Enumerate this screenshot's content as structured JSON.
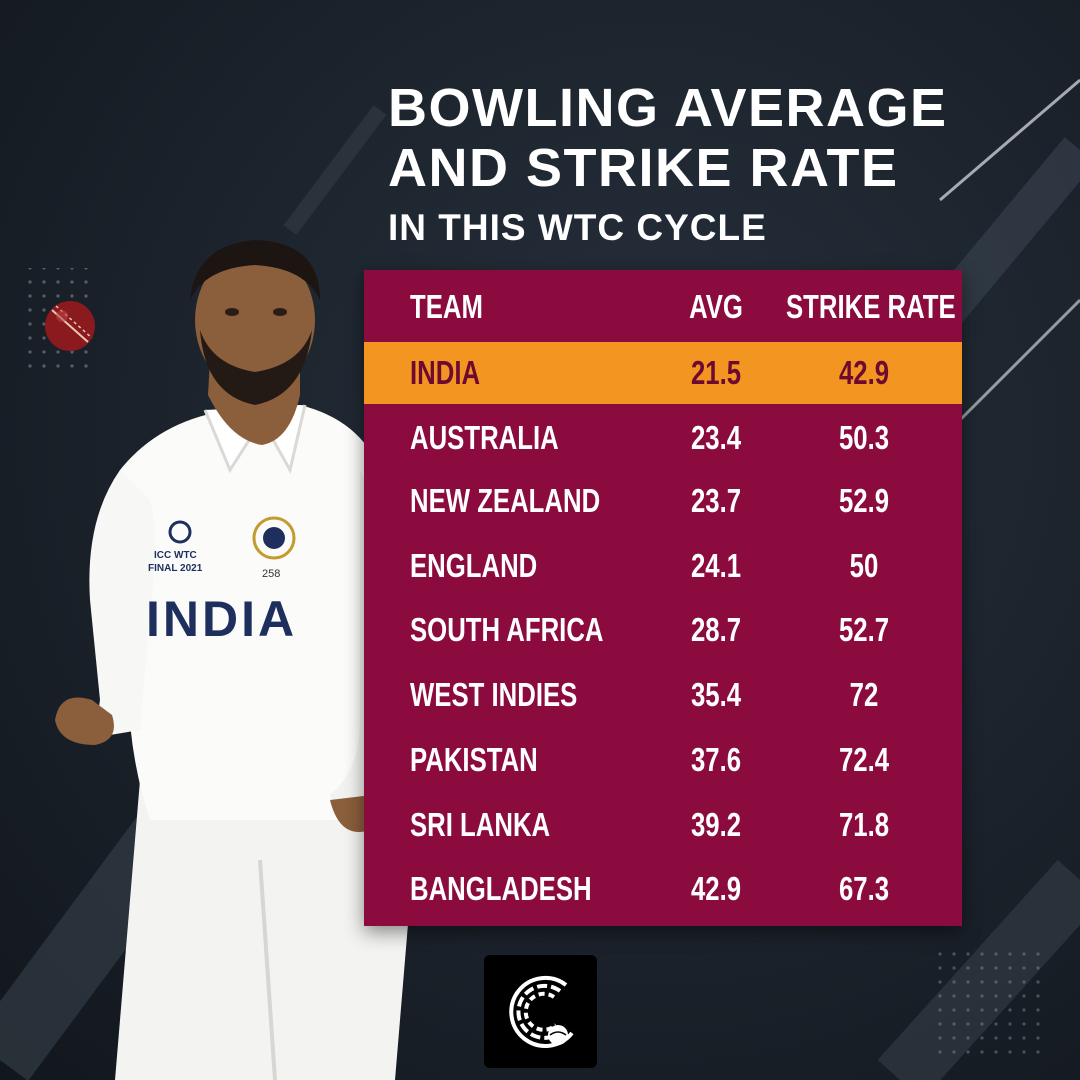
{
  "title": {
    "line1": "BOWLING AVERAGE",
    "line2": "AND STRIKE RATE",
    "subtitle": "IN THIS WTC CYCLE"
  },
  "table": {
    "headers": [
      "TEAM",
      "AVG",
      "STRIKE RATE"
    ],
    "highlight_color": "#f39521",
    "panel_color": "#8c0b3e",
    "rows": [
      {
        "team": "INDIA",
        "avg": "21.5",
        "sr": "42.9"
      },
      {
        "team": "AUSTRALIA",
        "avg": "23.4",
        "sr": "50.3"
      },
      {
        "team": "NEW ZEALAND",
        "avg": "23.7",
        "sr": "52.9"
      },
      {
        "team": "ENGLAND",
        "avg": "24.1",
        "sr": "50"
      },
      {
        "team": "SOUTH AFRICA",
        "avg": "28.7",
        "sr": "52.7"
      },
      {
        "team": "WEST INDIES",
        "avg": "35.4",
        "sr": "72"
      },
      {
        "team": "PAKISTAN",
        "avg": "37.6",
        "sr": "72.4"
      },
      {
        "team": "SRI LANKA",
        "avg": "39.2",
        "sr": "71.8"
      },
      {
        "team": "BANGLADESH",
        "avg": "42.9",
        "sr": "67.3"
      }
    ]
  },
  "player": {
    "jersey_text": "INDIA",
    "badge_text_1": "ICC WTC",
    "badge_text_2": "FINAL 2021",
    "shirt_number": "258"
  }
}
